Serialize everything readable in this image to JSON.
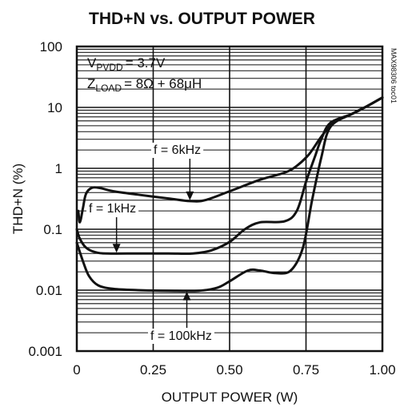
{
  "chart_data": {
    "type": "line",
    "title": "THD+N vs. OUTPUT POWER",
    "xlabel": "OUTPUT POWER (W)",
    "ylabel": "THD+N (%)",
    "xscale": "linear",
    "yscale": "log",
    "xlim": [
      0,
      1.0
    ],
    "ylim": [
      0.001,
      100
    ],
    "x_ticks": [
      "0",
      "0.25",
      "0.50",
      "0.75",
      "1.00"
    ],
    "y_ticks": [
      "0.001",
      "0.01",
      "0.1",
      "1",
      "10",
      "100"
    ],
    "grid": true,
    "conditions": {
      "supply_prefix": "V",
      "supply_sub": "PVDD",
      "supply_value": "= 3.7V",
      "load_prefix": "Z",
      "load_sub": "LOAD",
      "load_value": "= 8Ω + 68μH"
    },
    "part_id": "MAX98306 toc01",
    "series": [
      {
        "name": "f = 6kHz",
        "points": [
          [
            0.005,
            0.2
          ],
          [
            0.01,
            0.13
          ],
          [
            0.02,
            0.22
          ],
          [
            0.03,
            0.38
          ],
          [
            0.05,
            0.48
          ],
          [
            0.08,
            0.47
          ],
          [
            0.12,
            0.42
          ],
          [
            0.2,
            0.37
          ],
          [
            0.3,
            0.32
          ],
          [
            0.37,
            0.29
          ],
          [
            0.42,
            0.3
          ],
          [
            0.5,
            0.42
          ],
          [
            0.6,
            0.65
          ],
          [
            0.68,
            0.85
          ],
          [
            0.72,
            1.1
          ],
          [
            0.76,
            1.7
          ],
          [
            0.8,
            3.3
          ],
          [
            0.84,
            5.6
          ],
          [
            0.9,
            7.8
          ],
          [
            0.95,
            10.5
          ],
          [
            1.0,
            14.5
          ]
        ]
      },
      {
        "name": "f = 1kHz",
        "points": [
          [
            0.0,
            0.1
          ],
          [
            0.01,
            0.07
          ],
          [
            0.03,
            0.05
          ],
          [
            0.06,
            0.042
          ],
          [
            0.1,
            0.04
          ],
          [
            0.2,
            0.04
          ],
          [
            0.3,
            0.04
          ],
          [
            0.38,
            0.04
          ],
          [
            0.44,
            0.045
          ],
          [
            0.5,
            0.062
          ],
          [
            0.55,
            0.1
          ],
          [
            0.6,
            0.13
          ],
          [
            0.68,
            0.135
          ],
          [
            0.72,
            0.2
          ],
          [
            0.75,
            0.6
          ],
          [
            0.78,
            1.6
          ],
          [
            0.8,
            3.0
          ],
          [
            0.83,
            5.6
          ],
          [
            0.9,
            7.8
          ],
          [
            0.95,
            10.5
          ],
          [
            1.0,
            14.5
          ]
        ]
      },
      {
        "name": "f = 100kHz",
        "points": [
          [
            0.0,
            0.06
          ],
          [
            0.02,
            0.03
          ],
          [
            0.04,
            0.017
          ],
          [
            0.07,
            0.012
          ],
          [
            0.12,
            0.0105
          ],
          [
            0.2,
            0.01
          ],
          [
            0.3,
            0.0098
          ],
          [
            0.4,
            0.0098
          ],
          [
            0.46,
            0.011
          ],
          [
            0.5,
            0.014
          ],
          [
            0.56,
            0.021
          ],
          [
            0.6,
            0.021
          ],
          [
            0.65,
            0.019
          ],
          [
            0.7,
            0.021
          ],
          [
            0.74,
            0.05
          ],
          [
            0.77,
            0.3
          ],
          [
            0.8,
            1.5
          ],
          [
            0.83,
            4.8
          ],
          [
            0.9,
            7.8
          ],
          [
            0.95,
            10.5
          ],
          [
            1.0,
            14.5
          ]
        ]
      }
    ],
    "annotations": [
      {
        "text": "f = 6kHz",
        "arrow_to": [
          0.37,
          0.29
        ]
      },
      {
        "text": "f = 1kHz",
        "arrow_to": [
          0.13,
          0.04
        ]
      },
      {
        "text": "f = 100kHz",
        "arrow_to": [
          0.36,
          0.0098
        ]
      }
    ]
  }
}
